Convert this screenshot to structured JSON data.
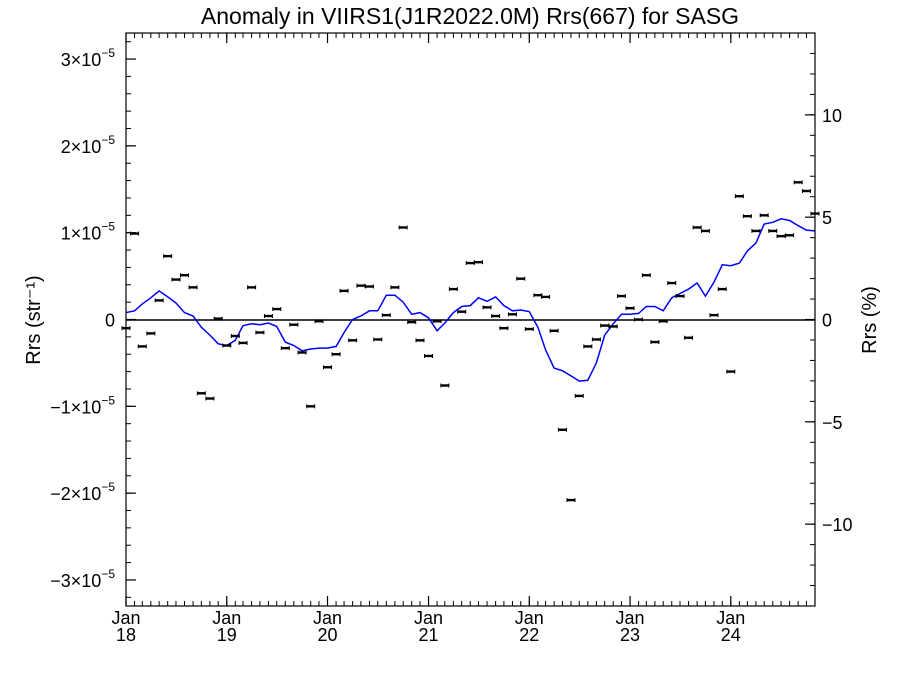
{
  "chart_data": {
    "type": "scatter",
    "title": "Anomaly in VIIRS1(J1R2022.0M) Rrs(667) for SASG",
    "ylabel_left": "Rrs (str⁻¹)",
    "ylabel_right": "Rrs (%)",
    "x_range": [
      "2018-01-01",
      "2024-11-01"
    ],
    "y_left_range": [
      -3.3e-05,
      3.3e-05
    ],
    "y_right_range": [
      -14,
      14
    ],
    "x_ticks": [
      {
        "month": "Jan",
        "year": "18"
      },
      {
        "month": "Jan",
        "year": "19"
      },
      {
        "month": "Jan",
        "year": "20"
      },
      {
        "month": "Jan",
        "year": "21"
      },
      {
        "month": "Jan",
        "year": "22"
      },
      {
        "month": "Jan",
        "year": "23"
      },
      {
        "month": "Jan",
        "year": "24"
      }
    ],
    "y_left_ticks": [
      {
        "value": 3e-05,
        "mant": "3×10",
        "exp": "−5"
      },
      {
        "value": 2e-05,
        "mant": "2×10",
        "exp": "−5"
      },
      {
        "value": 1e-05,
        "mant": "1×10",
        "exp": "−5"
      },
      {
        "value": 0,
        "mant": "0",
        "exp": ""
      },
      {
        "value": -1e-05,
        "mant": "−1×10",
        "exp": "−5"
      },
      {
        "value": -2e-05,
        "mant": "−2×10",
        "exp": "−5"
      },
      {
        "value": -3e-05,
        "mant": "−3×10",
        "exp": "−5"
      }
    ],
    "y_right_ticks": [
      {
        "value": 10,
        "label": "10"
      },
      {
        "value": 5,
        "label": "5"
      },
      {
        "value": 0,
        "label": "0"
      },
      {
        "value": -5,
        "label": "−5"
      },
      {
        "value": -10,
        "label": "−10"
      }
    ],
    "series": [
      {
        "kind": "points_with_error_bars",
        "color": "#000000",
        "x": [
          "2018-01-01",
          "2018-02-01",
          "2018-03-01",
          "2018-04-01",
          "2018-05-01",
          "2018-06-01",
          "2018-07-01",
          "2018-08-01",
          "2018-09-01",
          "2018-10-01",
          "2018-11-01",
          "2018-12-01",
          "2019-01-01",
          "2019-02-01",
          "2019-03-01",
          "2019-04-01",
          "2019-05-01",
          "2019-06-01",
          "2019-07-01",
          "2019-08-01",
          "2019-09-01",
          "2019-10-01",
          "2019-11-01",
          "2019-12-01",
          "2020-01-01",
          "2020-02-01",
          "2020-03-01",
          "2020-04-01",
          "2020-05-01",
          "2020-06-01",
          "2020-07-01",
          "2020-08-01",
          "2020-09-01",
          "2020-10-01",
          "2020-11-01",
          "2020-12-01",
          "2021-01-01",
          "2021-02-01",
          "2021-03-01",
          "2021-04-01",
          "2021-05-01",
          "2021-06-01",
          "2021-07-01",
          "2021-08-01",
          "2021-09-01",
          "2021-10-01",
          "2021-11-01",
          "2021-12-01",
          "2022-01-01",
          "2022-02-01",
          "2022-03-01",
          "2022-04-01",
          "2022-05-01",
          "2022-06-01",
          "2022-07-01",
          "2022-08-01",
          "2022-09-01",
          "2022-10-01",
          "2022-11-01",
          "2022-12-01",
          "2023-01-01",
          "2023-02-01",
          "2023-03-01",
          "2023-04-01",
          "2023-05-01",
          "2023-06-01",
          "2023-07-01",
          "2023-08-01",
          "2023-09-01",
          "2023-10-01",
          "2023-11-01",
          "2023-12-01",
          "2024-01-01",
          "2024-02-01",
          "2024-03-01",
          "2024-04-01",
          "2024-05-01",
          "2024-06-01",
          "2024-07-01",
          "2024-08-01",
          "2024-09-01",
          "2024-10-01",
          "2024-11-01"
        ],
        "y": [
          -1e-06,
          9.9e-06,
          -3.1e-06,
          -1.6e-06,
          2.2e-06,
          7.3e-06,
          4.6e-06,
          5.1e-06,
          3.7e-06,
          -8.5e-06,
          -9.1e-06,
          1e-07,
          -3e-06,
          -1.9e-06,
          -2.7e-06,
          3.7e-06,
          -1.5e-06,
          4e-07,
          1.2e-06,
          -3.3e-06,
          -6e-07,
          -3.8e-06,
          -1e-05,
          -2e-07,
          -5.5e-06,
          -4e-06,
          3.3e-06,
          -2.4e-06,
          3.9e-06,
          3.8e-06,
          -2.3e-06,
          5e-07,
          3.7e-06,
          1.06e-05,
          -3e-07,
          -2.4e-06,
          -4.2e-06,
          -2e-07,
          -7.6e-06,
          3.5e-06,
          9e-07,
          6.5e-06,
          6.6e-06,
          1.4e-06,
          4e-07,
          -1e-06,
          6e-07,
          4.7e-06,
          -1.1e-06,
          2.8e-06,
          2.6e-06,
          -1.3e-06,
          -1.27e-05,
          -2.08e-05,
          -8.8e-06,
          -3.1e-06,
          -2.3e-06,
          -7e-07,
          -8e-07,
          2.7e-06,
          1.3e-06,
          0.0,
          5.1e-06,
          -2.6e-06,
          -2e-07,
          4.2e-06,
          2.7e-06,
          -2.1e-06,
          1.06e-05,
          1.02e-05,
          5e-07,
          3.5e-06,
          -6e-06,
          1.42e-05,
          1.19e-05,
          1.02e-05,
          1.2e-05,
          1.02e-05,
          9.6e-06,
          9.7e-06,
          1.58e-05,
          1.48e-05,
          1.22e-05
        ]
      },
      {
        "kind": "line",
        "color": "#0000ff",
        "x": [
          "2018-01-01",
          "2018-02-01",
          "2018-03-01",
          "2018-04-01",
          "2018-05-01",
          "2018-06-01",
          "2018-07-01",
          "2018-08-01",
          "2018-09-01",
          "2018-10-01",
          "2018-11-01",
          "2018-12-01",
          "2019-01-01",
          "2019-02-01",
          "2019-03-01",
          "2019-04-01",
          "2019-05-01",
          "2019-06-01",
          "2019-07-01",
          "2019-08-01",
          "2019-09-01",
          "2019-10-01",
          "2019-11-01",
          "2019-12-01",
          "2020-01-01",
          "2020-02-01",
          "2020-03-01",
          "2020-04-01",
          "2020-05-01",
          "2020-06-01",
          "2020-07-01",
          "2020-08-01",
          "2020-09-01",
          "2020-10-01",
          "2020-11-01",
          "2020-12-01",
          "2021-01-01",
          "2021-02-01",
          "2021-03-01",
          "2021-04-01",
          "2021-05-01",
          "2021-06-01",
          "2021-07-01",
          "2021-08-01",
          "2021-09-01",
          "2021-10-01",
          "2021-11-01",
          "2021-12-01",
          "2022-01-01",
          "2022-02-01",
          "2022-03-01",
          "2022-04-01",
          "2022-05-01",
          "2022-06-01",
          "2022-07-01",
          "2022-08-01",
          "2022-09-01",
          "2022-10-01",
          "2022-11-01",
          "2022-12-01",
          "2023-01-01",
          "2023-02-01",
          "2023-03-01",
          "2023-04-01",
          "2023-05-01",
          "2023-06-01",
          "2023-07-01",
          "2023-08-01",
          "2023-09-01",
          "2023-10-01",
          "2023-11-01",
          "2023-12-01",
          "2024-01-01",
          "2024-02-01",
          "2024-03-01",
          "2024-04-01",
          "2024-05-01",
          "2024-06-01",
          "2024-07-01",
          "2024-08-01",
          "2024-09-01",
          "2024-10-01",
          "2024-11-01"
        ],
        "y": [
          8e-07,
          1e-06,
          1.8e-06,
          2.5e-06,
          3.3e-06,
          2.6e-06,
          1.9e-06,
          8e-07,
          4e-07,
          -9e-07,
          -1.8e-06,
          -2.8e-06,
          -3e-06,
          -2.4e-06,
          -7e-07,
          -5e-07,
          -6e-07,
          -4e-07,
          -8e-07,
          -2.6e-06,
          -3e-06,
          -3.6e-06,
          -3.4e-06,
          -3.3e-06,
          -3.3e-06,
          -3.1e-06,
          -1.5e-06,
          0.0,
          4e-07,
          1e-06,
          1e-06,
          2.8e-06,
          2.8e-06,
          2e-06,
          6e-07,
          8e-07,
          2e-07,
          -1.3e-06,
          -4e-07,
          8e-07,
          1.5e-06,
          1.6e-06,
          2.5e-06,
          2.1e-06,
          2.6e-06,
          1.6e-06,
          1e-06,
          1.1e-06,
          9e-07,
          -9e-07,
          -3.5e-06,
          -5.6e-06,
          -5.9e-06,
          -6.5e-06,
          -7.1e-06,
          -7e-06,
          -5e-06,
          -1.8e-06,
          -5e-07,
          6e-07,
          6e-07,
          7e-07,
          1.5e-06,
          1.5e-06,
          1e-06,
          2.5e-06,
          3e-06,
          3.5e-06,
          4.2e-06,
          2.7e-06,
          4.3e-06,
          6.3e-06,
          6.2e-06,
          6.5e-06,
          7.9e-06,
          8.8e-06,
          1.1e-05,
          1.12e-05,
          1.16e-05,
          1.14e-05,
          1.08e-05,
          1.03e-05,
          1.02e-05
        ]
      }
    ]
  }
}
